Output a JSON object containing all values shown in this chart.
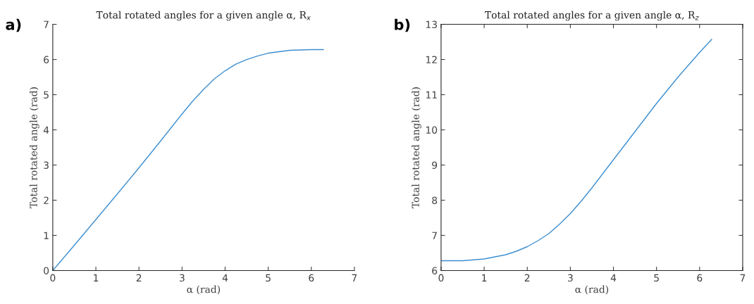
{
  "chart_data": [
    {
      "type": "line",
      "title": "Total rotated angles for a given angle α, R$_{x}$",
      "xlabel": "α (rad)",
      "ylabel": "Total rotated angle (rad)",
      "annotations": [
        "a)"
      ],
      "x": [
        0,
        0.5,
        1,
        1.5,
        2,
        2.5,
        3,
        3.25,
        3.5,
        3.75,
        4,
        4.25,
        4.5,
        4.75,
        5,
        5.5,
        6,
        6.28
      ],
      "series": [
        {
          "color": "#3d8fd1",
          "values": [
            0,
            0.72,
            1.45,
            2.18,
            2.92,
            3.68,
            4.45,
            4.82,
            5.15,
            5.45,
            5.68,
            5.87,
            6.0,
            6.1,
            6.18,
            6.26,
            6.28,
            6.28
          ]
        }
      ],
      "xlim": [
        0,
        7
      ],
      "xticks": [
        0,
        1,
        2,
        3,
        4,
        5,
        6,
        7
      ],
      "ylim": [
        0,
        7
      ],
      "yticks": [
        0,
        1,
        2,
        3,
        4,
        5,
        6,
        7
      ],
      "grid": false
    },
    {
      "type": "line",
      "title": "Total rotated angles for a given angle α, R$_{z}$",
      "xlabel": "α (rad)",
      "ylabel": "Total rotated angle (rad)",
      "annotations": [
        "b)"
      ],
      "x": [
        0,
        0.5,
        1,
        1.5,
        1.75,
        2,
        2.25,
        2.5,
        2.75,
        3,
        3.25,
        3.5,
        4,
        4.5,
        5,
        5.5,
        6,
        6.28
      ],
      "series": [
        {
          "color": "#3d8fd1",
          "values": [
            6.28,
            6.28,
            6.33,
            6.45,
            6.55,
            6.68,
            6.85,
            7.05,
            7.32,
            7.62,
            7.97,
            8.35,
            9.15,
            9.95,
            10.75,
            11.5,
            12.2,
            12.57
          ]
        }
      ],
      "xlim": [
        0,
        7
      ],
      "xticks": [
        0,
        1,
        2,
        3,
        4,
        5,
        6,
        7
      ],
      "ylim": [
        6,
        13
      ],
      "yticks": [
        6,
        7,
        8,
        9,
        10,
        11,
        12,
        13
      ],
      "grid": false
    }
  ]
}
